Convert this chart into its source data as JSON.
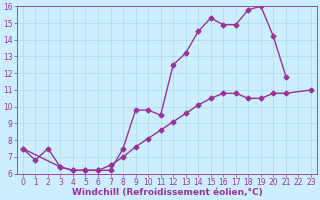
{
  "xlabel": "Windchill (Refroidissement éolien,°C)",
  "xlim": [
    -0.5,
    23.5
  ],
  "ylim": [
    6,
    16
  ],
  "xticks": [
    0,
    1,
    2,
    3,
    4,
    5,
    6,
    7,
    8,
    9,
    10,
    11,
    12,
    13,
    14,
    15,
    16,
    17,
    18,
    19,
    20,
    21,
    22,
    23
  ],
  "yticks": [
    6,
    7,
    8,
    9,
    10,
    11,
    12,
    13,
    14,
    15,
    16
  ],
  "background_color": "#cceeff",
  "line_color": "#993399",
  "grid_color": "#aadddd",
  "line1_x": [
    0,
    1,
    2,
    3,
    4,
    5,
    6,
    7,
    8,
    9,
    10,
    11,
    12,
    13,
    14,
    15,
    16,
    17,
    18,
    19,
    20,
    21
  ],
  "line1_y": [
    7.5,
    6.8,
    7.5,
    6.4,
    6.2,
    6.2,
    6.2,
    6.2,
    7.5,
    9.8,
    9.8,
    9.5,
    12.5,
    13.2,
    14.5,
    15.3,
    14.9,
    14.9,
    15.8,
    16.0,
    14.2,
    11.8
  ],
  "line2_x": [
    0,
    3,
    4,
    5,
    6,
    7,
    8,
    9,
    10,
    11,
    12,
    13,
    14,
    15,
    16,
    17,
    18,
    19,
    20,
    21,
    23
  ],
  "line2_y": [
    7.5,
    6.4,
    6.2,
    6.2,
    6.2,
    6.5,
    7.0,
    7.6,
    8.1,
    8.6,
    9.1,
    9.6,
    10.1,
    10.5,
    10.8,
    10.8,
    10.5,
    10.5,
    10.8,
    10.8,
    11.0
  ],
  "marker": "D",
  "marker_size": 2.5,
  "line_width": 1.0,
  "tick_fontsize": 5.5,
  "label_fontsize": 6.5
}
